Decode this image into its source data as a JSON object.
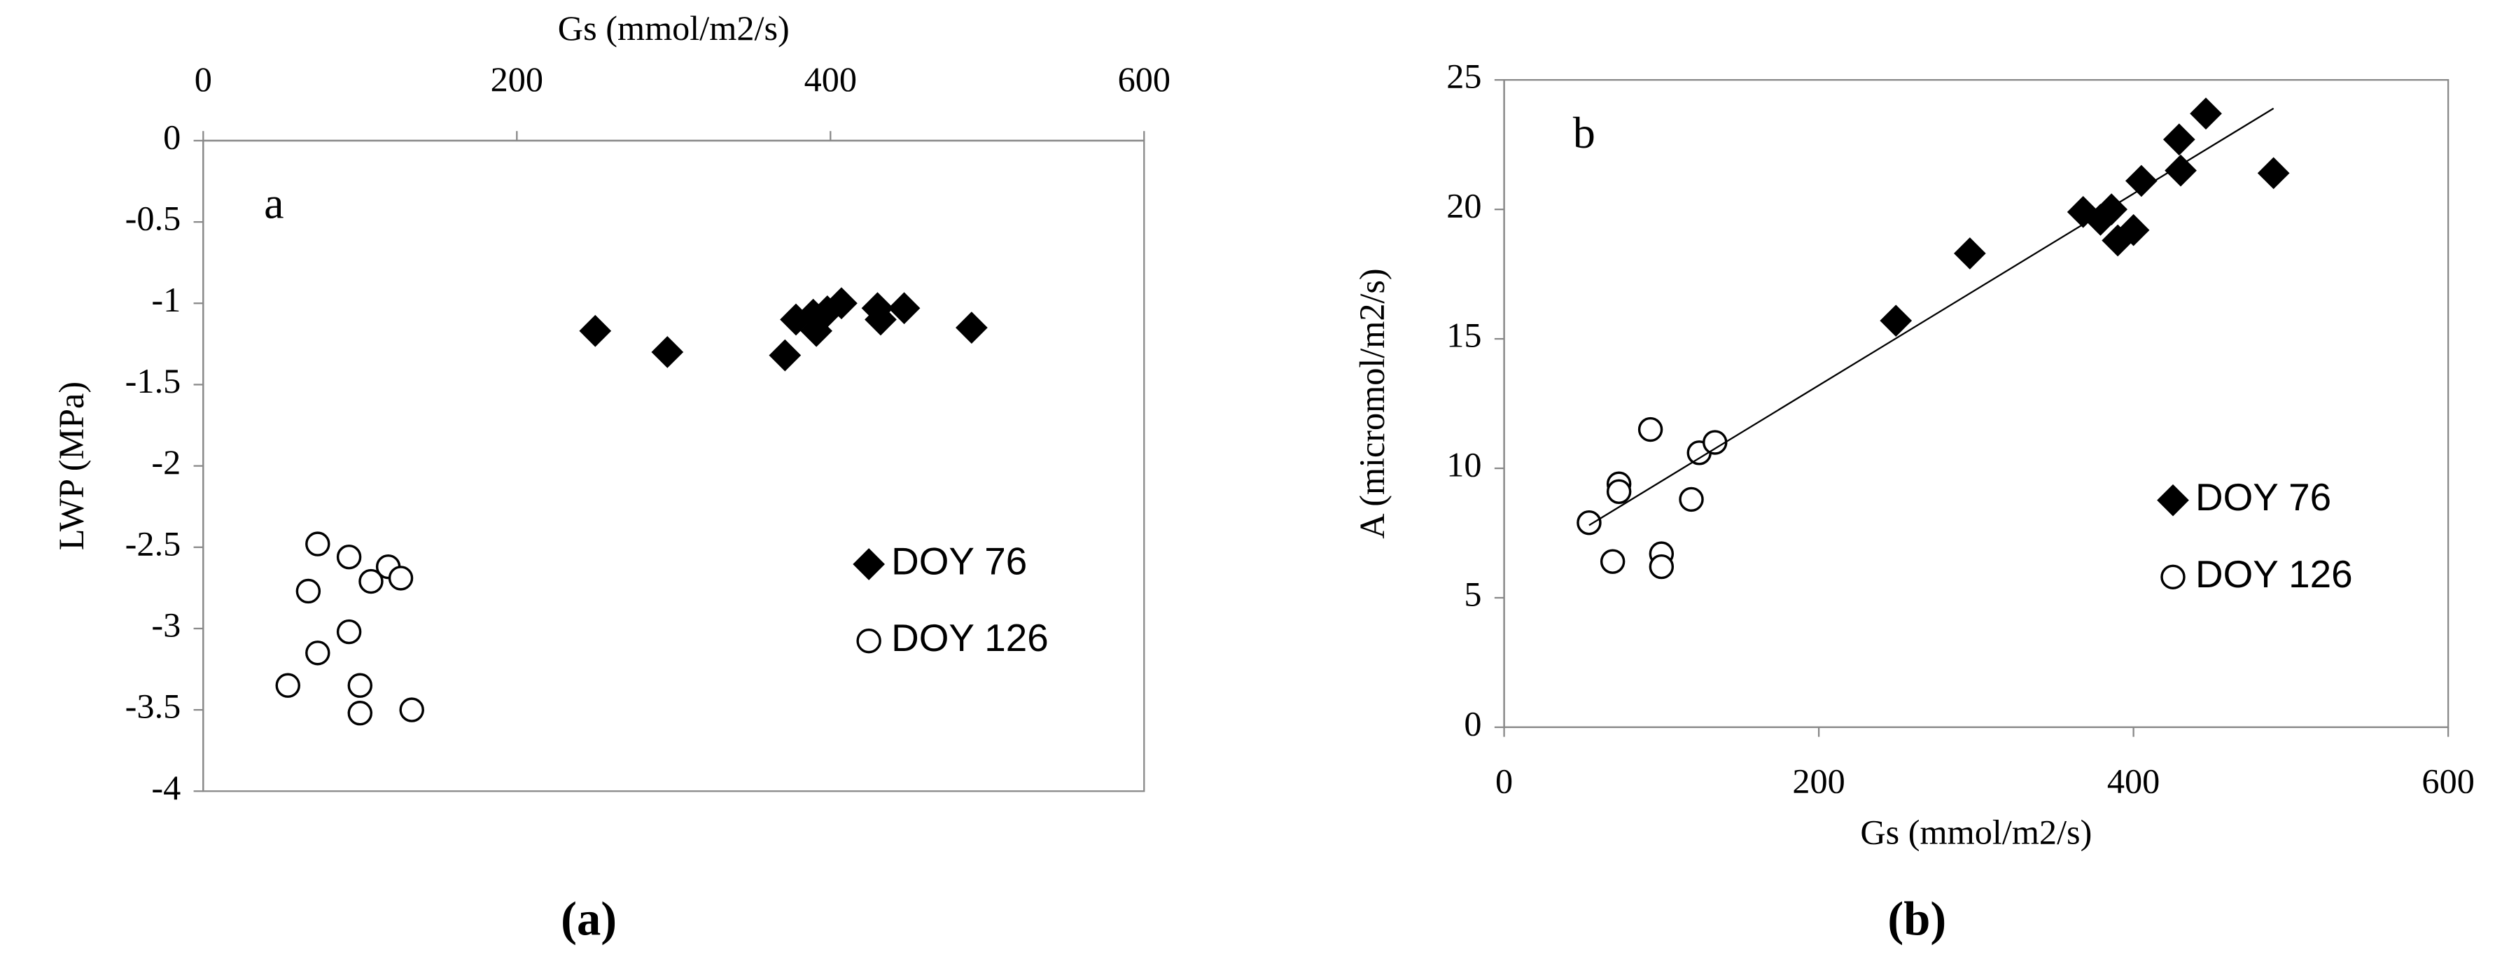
{
  "chart_data": [
    {
      "type": "scatter",
      "panel_label": "a",
      "caption": "(a)",
      "xlabel": "Gs (mmol/m2/s)",
      "ylabel": "LWP (MPa)",
      "x_axis_position": "top",
      "xlim": [
        0,
        600
      ],
      "xticks": [
        0,
        200,
        400,
        600
      ],
      "ylim": [
        -4,
        0
      ],
      "yticks": [
        0,
        -0.5,
        -1,
        -1.5,
        -2,
        -2.5,
        -3,
        -3.5,
        -4
      ],
      "grid": false,
      "legend": "lower right",
      "series": [
        {
          "name": "DOY 76",
          "marker": "diamond",
          "color": "#000000",
          "x": [
            250,
            296,
            371,
            378,
            389,
            391,
            398,
            407,
            430,
            432,
            447,
            490
          ],
          "y": [
            -1.17,
            -1.3,
            -1.32,
            -1.1,
            -1.07,
            -1.17,
            -1.05,
            -1.0,
            -1.03,
            -1.1,
            -1.03,
            -1.15
          ]
        },
        {
          "name": "DOY 126",
          "marker": "open-circle",
          "color": "#000000",
          "x": [
            73,
            93,
            118,
            126,
            107,
            67,
            93,
            73,
            54,
            100,
            100,
            133
          ],
          "y": [
            -2.48,
            -2.56,
            -2.62,
            -2.69,
            -2.71,
            -2.77,
            -3.02,
            -3.15,
            -3.35,
            -3.35,
            -3.52,
            -3.5
          ]
        }
      ]
    },
    {
      "type": "scatter",
      "panel_label": "b",
      "caption": "(b)",
      "xlabel": "Gs (mmol/m2/s)",
      "ylabel": "A (micromol/m2/s)",
      "x_axis_position": "bottom",
      "xlim": [
        0,
        600
      ],
      "xticks": [
        0,
        200,
        400,
        600
      ],
      "ylim": [
        0,
        25
      ],
      "yticks": [
        0,
        5,
        10,
        15,
        20,
        25
      ],
      "grid": false,
      "legend": "lower right",
      "series": [
        {
          "name": "DOY 76",
          "marker": "diamond",
          "color": "#000000",
          "x": [
            249,
            296,
            368,
            379,
            386,
            390,
            400,
            405,
            430,
            429,
            446,
            489
          ],
          "y": [
            15.7,
            18.3,
            19.9,
            19.6,
            20.0,
            18.8,
            19.2,
            21.1,
            21.5,
            22.7,
            23.7,
            21.4
          ]
        },
        {
          "name": "DOY 126",
          "marker": "open-circle",
          "color": "#000000",
          "x": [
            54,
            73,
            73,
            69,
            93,
            100,
            100,
            119,
            124,
            134
          ],
          "y": [
            7.9,
            9.4,
            9.1,
            6.4,
            11.5,
            6.7,
            6.2,
            8.8,
            10.6,
            11.0
          ]
        }
      ],
      "trendline": {
        "x": [
          54,
          489
        ],
        "y": [
          7.8,
          23.9
        ]
      }
    }
  ]
}
